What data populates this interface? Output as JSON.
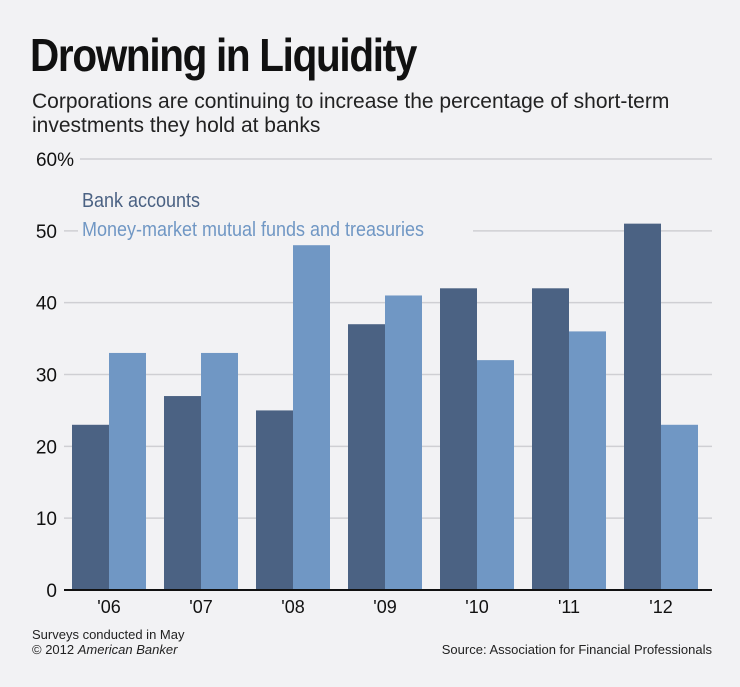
{
  "chart_data": {
    "type": "bar",
    "title": "Drowning in Liquidity",
    "subtitle": "Corporations are continuing to increase the percentage of short-term investments they hold at banks",
    "categories": [
      "'06",
      "'07",
      "'08",
      "'09",
      "'10",
      "'11",
      "'12"
    ],
    "series": [
      {
        "name": "Bank accounts",
        "color": "#4b6283",
        "values": [
          23,
          27,
          25,
          37,
          42,
          42,
          51
        ]
      },
      {
        "name": "Money-market mutual funds and treasuries",
        "color": "#7097c4",
        "values": [
          33,
          33,
          48,
          41,
          32,
          36,
          23
        ]
      }
    ],
    "yticks": [
      0,
      10,
      20,
      30,
      40,
      50,
      60
    ],
    "ytick_labels": [
      "0",
      "10",
      "20",
      "30",
      "40",
      "50",
      "60%"
    ],
    "ylim": [
      0,
      60
    ],
    "grid": true,
    "legend": "top-left",
    "xlabel": "",
    "ylabel": ""
  },
  "footer": {
    "note1": "Surveys conducted in May",
    "note2_prefix": "© 2012 ",
    "note2_brand": "American Banker",
    "source": "Source: Association for Financial Professionals"
  }
}
